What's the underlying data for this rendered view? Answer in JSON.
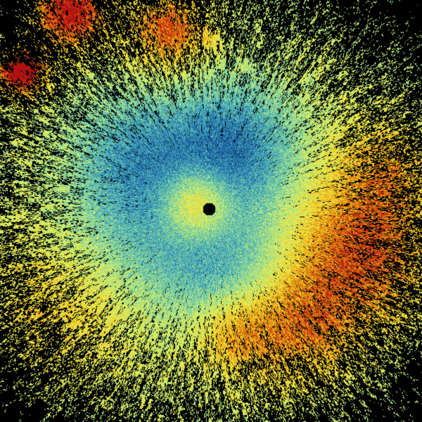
{
  "image": {
    "kind": "radar-ppi-scan",
    "background": "#000000",
    "palette": [
      "#174f8f",
      "#2f8fbf",
      "#5cc0b0",
      "#9ee090",
      "#e0f060",
      "#f2dc30",
      "#e8a010",
      "#d05010",
      "#b01010"
    ]
  }
}
